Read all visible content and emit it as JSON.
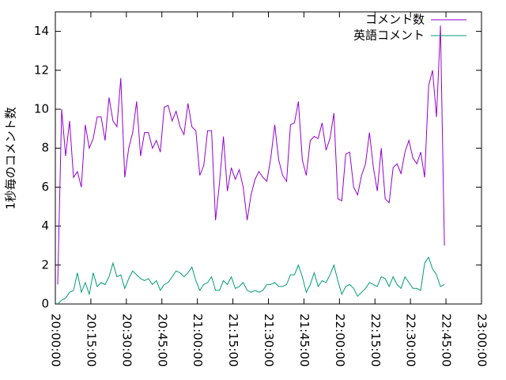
{
  "chart_data": {
    "type": "line",
    "ylabel": "1秒毎のコメント数",
    "x": [
      "20:01:00",
      "20:02:40",
      "20:04:20",
      "20:06:00",
      "20:07:40",
      "20:09:20",
      "20:11:00",
      "20:12:40",
      "20:14:20",
      "20:16:00",
      "20:17:40",
      "20:19:20",
      "20:21:00",
      "20:22:40",
      "20:24:20",
      "20:26:00",
      "20:27:40",
      "20:29:20",
      "20:31:00",
      "20:32:40",
      "20:34:20",
      "20:36:00",
      "20:37:40",
      "20:39:20",
      "20:41:00",
      "20:42:40",
      "20:44:20",
      "20:46:00",
      "20:47:40",
      "20:49:20",
      "20:51:00",
      "20:52:40",
      "20:54:20",
      "20:56:00",
      "20:57:40",
      "20:59:20",
      "21:01:00",
      "21:02:40",
      "21:04:20",
      "21:06:00",
      "21:07:40",
      "21:09:20",
      "21:11:00",
      "21:12:40",
      "21:14:20",
      "21:16:00",
      "21:17:40",
      "21:19:20",
      "21:21:00",
      "21:22:40",
      "21:24:20",
      "21:26:00",
      "21:27:40",
      "21:29:20",
      "21:31:00",
      "21:32:40",
      "21:34:20",
      "21:36:00",
      "21:37:40",
      "21:39:20",
      "21:41:00",
      "21:42:40",
      "21:44:20",
      "21:46:00",
      "21:47:40",
      "21:49:20",
      "21:51:00",
      "21:52:40",
      "21:54:20",
      "21:56:00",
      "21:57:40",
      "21:59:20",
      "22:01:00",
      "22:02:40",
      "22:04:20",
      "22:06:00",
      "22:07:40",
      "22:09:20",
      "22:11:00",
      "22:12:40",
      "22:14:20",
      "22:16:00",
      "22:17:40",
      "22:19:20",
      "22:21:00",
      "22:22:40",
      "22:24:20",
      "22:26:00",
      "22:27:40",
      "22:29:20",
      "22:31:00",
      "22:32:40",
      "22:34:20",
      "22:36:00",
      "22:37:40",
      "22:39:20",
      "22:41:00",
      "22:42:40",
      "22:44:20"
    ],
    "series": [
      {
        "name": "コメント数",
        "color": "#9400d3",
        "values": [
          1,
          10,
          7.6,
          9.4,
          6.5,
          6.8,
          6,
          9.2,
          8,
          8.5,
          9.6,
          9.6,
          8.4,
          10.6,
          9.4,
          9.1,
          11.6,
          6.5,
          8,
          8.8,
          10.4,
          7.6,
          8.8,
          8.8,
          8,
          8.4,
          7.8,
          10.1,
          10.2,
          9.4,
          9.9,
          9.1,
          8.7,
          10.3,
          9.1,
          8.9,
          6.6,
          7.1,
          8.9,
          8.9,
          4.3,
          6.2,
          8.6,
          5.8,
          7,
          6.4,
          6.9,
          6,
          4.3,
          5.6,
          6.4,
          6.8,
          6.5,
          6.3,
          7.5,
          9.2,
          7.4,
          6.6,
          6.3,
          9.2,
          9.3,
          10.4,
          7.4,
          6.6,
          8.4,
          8.6,
          8.5,
          9.3,
          7.9,
          8.5,
          9.8,
          5.4,
          5.3,
          7.7,
          7.8,
          6,
          5.6,
          6.6,
          7.2,
          8.8,
          7,
          5.8,
          8,
          5.4,
          5.2,
          7,
          7.2,
          6.7,
          7.8,
          8.4,
          7.5,
          7.2,
          7.8,
          6.5,
          11.2,
          12,
          9.6,
          14.3,
          3
        ]
      },
      {
        "name": "英語コメント",
        "color": "#009e73",
        "values": [
          0,
          0.2,
          0.3,
          0.6,
          0.7,
          1.6,
          0.6,
          1.1,
          0.5,
          1.6,
          0.9,
          1.1,
          1,
          1.4,
          2.1,
          1.4,
          1.5,
          0.8,
          1.3,
          1.7,
          1.5,
          1.3,
          1.2,
          1.3,
          1,
          1.2,
          0.7,
          1,
          1.1,
          1.4,
          1.7,
          1.6,
          1.4,
          1.6,
          1.9,
          1.2,
          0.7,
          1,
          1.1,
          1.4,
          0.7,
          0.7,
          1.2,
          1,
          1.4,
          0.8,
          0.9,
          1.1,
          0.7,
          0.6,
          0.7,
          0.6,
          0.7,
          1,
          1,
          1.1,
          0.9,
          0.9,
          1,
          1.5,
          1.5,
          2,
          1.4,
          0.6,
          1,
          1.6,
          0.9,
          1.2,
          1.1,
          1.5,
          2,
          1.2,
          0.5,
          0.9,
          1,
          0.8,
          0.4,
          0.6,
          0.8,
          1.1,
          1,
          0.9,
          1.4,
          1.3,
          0.9,
          1.4,
          1,
          0.8,
          1.4,
          1.1,
          0.8,
          0.8,
          0.7,
          2.1,
          2.4,
          1.8,
          1.5,
          0.9,
          1
        ]
      }
    ],
    "xlim": [
      "20:00:00",
      "23:00:00"
    ],
    "xticks": [
      "20:00:00",
      "20:15:00",
      "20:30:00",
      "20:45:00",
      "21:00:00",
      "21:15:00",
      "21:30:00",
      "21:45:00",
      "22:00:00",
      "22:15:00",
      "22:30:00",
      "22:45:00",
      "23:00:00"
    ],
    "ylim": [
      0,
      15
    ],
    "yticks": [
      0,
      2,
      4,
      6,
      8,
      10,
      12,
      14
    ],
    "legend": "top-right"
  }
}
